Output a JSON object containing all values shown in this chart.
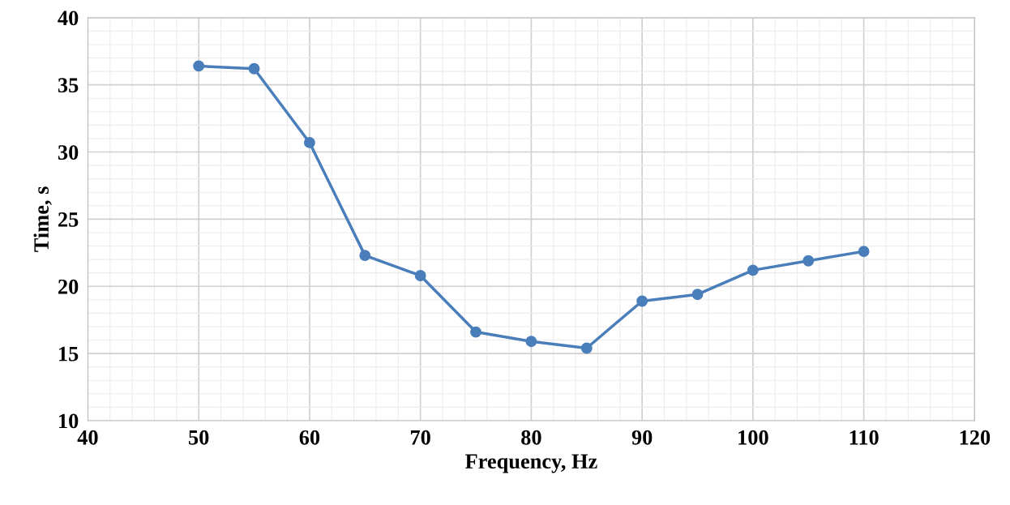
{
  "chart_data": {
    "type": "line",
    "xlabel": "Frequency, Hz",
    "ylabel": "Time, s",
    "x": [
      50,
      55,
      60,
      65,
      70,
      75,
      80,
      85,
      90,
      95,
      100,
      105,
      110
    ],
    "series": [
      {
        "color": "#4a7ebb",
        "values": [
          36.4,
          36.2,
          30.7,
          22.3,
          20.8,
          16.6,
          15.9,
          15.4,
          18.9,
          19.4,
          21.2,
          21.9,
          22.6
        ]
      }
    ],
    "xlim": [
      40,
      120
    ],
    "xticks": [
      40,
      50,
      60,
      70,
      80,
      90,
      100,
      110,
      120
    ],
    "ylim": [
      10,
      40
    ],
    "yticks": [
      10,
      15,
      20,
      25,
      30,
      35,
      40
    ],
    "grid": true,
    "marker": "circle",
    "line_style": "solid",
    "legend": false
  }
}
